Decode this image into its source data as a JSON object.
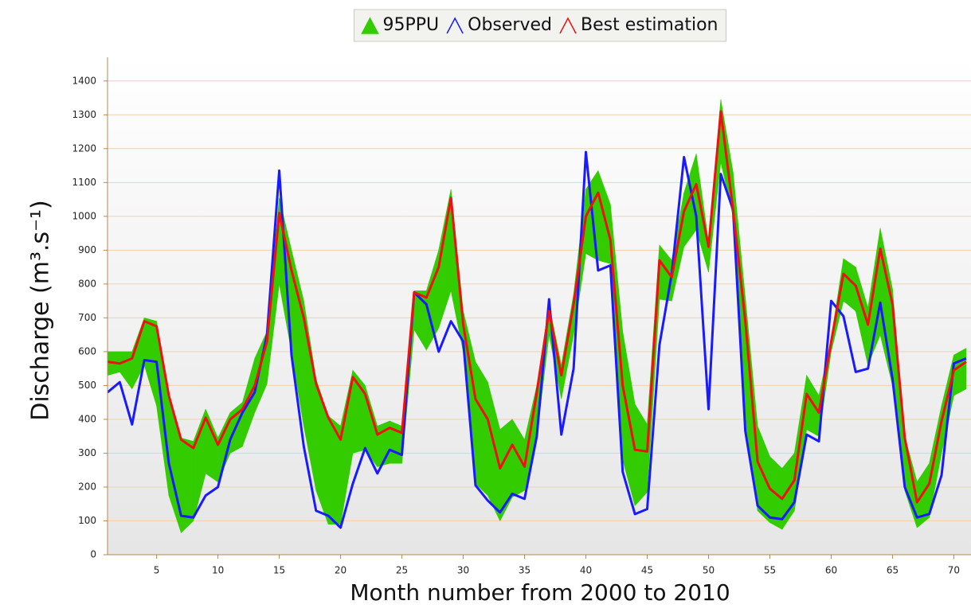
{
  "chart_data": {
    "type": "line",
    "xlabel": "Month number from 2000 to 2010",
    "ylabel": "Discharge (m³.s⁻¹)",
    "x": [
      1,
      2,
      3,
      4,
      5,
      6,
      7,
      8,
      9,
      10,
      11,
      12,
      13,
      14,
      15,
      16,
      17,
      18,
      19,
      20,
      21,
      22,
      23,
      24,
      25,
      26,
      27,
      28,
      29,
      30,
      31,
      32,
      33,
      34,
      35,
      36,
      37,
      38,
      39,
      40,
      41,
      42,
      43,
      44,
      45,
      46,
      47,
      48,
      49,
      50,
      51,
      52,
      53,
      54,
      55,
      56,
      57,
      58,
      59,
      60,
      61,
      62,
      63,
      64,
      65,
      66,
      67,
      68,
      69,
      70,
      71
    ],
    "band": {
      "name": "95PPU",
      "color": "#33cc00",
      "upper": [
        600,
        600,
        600,
        700,
        690,
        480,
        345,
        335,
        430,
        345,
        420,
        450,
        580,
        660,
        1055,
        900,
        750,
        520,
        410,
        380,
        545,
        500,
        380,
        395,
        380,
        780,
        780,
        900,
        1080,
        720,
        570,
        510,
        370,
        400,
        340,
        500,
        740,
        560,
        770,
        1080,
        1135,
        1035,
        660,
        445,
        385,
        915,
        870,
        1070,
        1185,
        925,
        1345,
        1130,
        760,
        380,
        290,
        255,
        300,
        530,
        470,
        640,
        875,
        850,
        730,
        965,
        785,
        350,
        215,
        270,
        440,
        590,
        610
      ],
      "lower": [
        530,
        540,
        490,
        560,
        440,
        175,
        65,
        100,
        240,
        215,
        300,
        320,
        420,
        505,
        800,
        600,
        380,
        190,
        90,
        90,
        300,
        310,
        260,
        270,
        270,
        665,
        605,
        670,
        780,
        600,
        210,
        175,
        100,
        170,
        190,
        350,
        650,
        460,
        650,
        890,
        870,
        860,
        280,
        145,
        185,
        755,
        750,
        910,
        960,
        835,
        1160,
        1000,
        395,
        130,
        95,
        75,
        130,
        370,
        350,
        600,
        750,
        720,
        560,
        650,
        500,
        190,
        80,
        110,
        300,
        470,
        490
      ]
    },
    "series": [
      {
        "name": "Observed",
        "color": "#1a1aff",
        "values": [
          480,
          510,
          385,
          575,
          570,
          270,
          115,
          110,
          175,
          200,
          340,
          420,
          480,
          650,
          1135,
          590,
          320,
          130,
          115,
          80,
          210,
          315,
          240,
          310,
          295,
          775,
          740,
          600,
          690,
          630,
          205,
          160,
          125,
          180,
          165,
          350,
          755,
          355,
          550,
          1190,
          840,
          855,
          245,
          120,
          135,
          620,
          830,
          1175,
          1000,
          430,
          1125,
          1020,
          365,
          145,
          110,
          105,
          155,
          355,
          335,
          750,
          705,
          540,
          550,
          745,
          520,
          200,
          110,
          120,
          235,
          565,
          580
        ]
      },
      {
        "name": "Best estimation",
        "color": "#ee1111",
        "values": [
          570,
          565,
          580,
          690,
          675,
          470,
          340,
          315,
          405,
          325,
          400,
          430,
          500,
          630,
          1010,
          840,
          700,
          505,
          405,
          340,
          525,
          475,
          355,
          375,
          360,
          775,
          760,
          850,
          1055,
          680,
          460,
          400,
          255,
          325,
          260,
          480,
          720,
          530,
          740,
          1000,
          1070,
          930,
          500,
          310,
          305,
          870,
          820,
          1015,
          1095,
          910,
          1310,
          1020,
          690,
          275,
          195,
          165,
          220,
          475,
          420,
          630,
          830,
          795,
          680,
          905,
          740,
          345,
          155,
          210,
          395,
          545,
          570
        ]
      }
    ],
    "xlim": [
      1,
      71.4
    ],
    "xticks": [
      5,
      10,
      15,
      20,
      25,
      30,
      35,
      40,
      45,
      50,
      55,
      60,
      65,
      70
    ],
    "ylim": [
      0,
      1470
    ],
    "yticks": [
      0,
      100,
      200,
      300,
      400,
      500,
      600,
      700,
      800,
      900,
      1000,
      1100,
      1200,
      1300,
      1400
    ],
    "grid": true,
    "legend": "top"
  }
}
